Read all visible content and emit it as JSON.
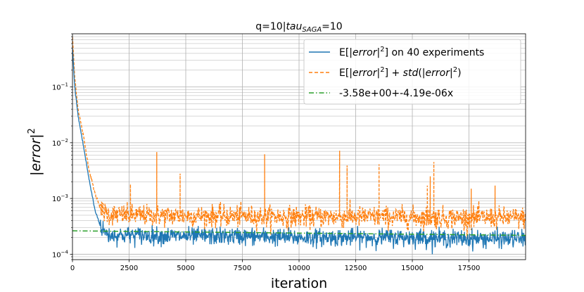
{
  "chart_data": {
    "type": "line",
    "title_parts": [
      "q=10|",
      "tau",
      "SAGA",
      "=10"
    ],
    "xlabel": "iteration",
    "ylabel_parts": [
      "|",
      "error",
      "|",
      "2"
    ],
    "yscale": "log",
    "xlim": [
      0,
      19999
    ],
    "ylim": [
      8e-05,
      0.9
    ],
    "grid": true,
    "legend_position": "top-right",
    "x_ticks": [
      0,
      2500,
      5000,
      7500,
      10000,
      12500,
      15000,
      17500
    ],
    "x_tick_labels": [
      "0",
      "2500",
      "5000",
      "7500",
      "10000",
      "12500",
      "15000",
      "17500"
    ],
    "y_ticks": [
      0.0001,
      0.001,
      0.01,
      0.1
    ],
    "y_tick_base": "10",
    "y_tick_exponents": [
      "−4",
      "−3",
      "−2",
      "−1"
    ],
    "legend": [
      {
        "parts": [
          "E[|",
          "error",
          "|",
          "2",
          "] on 40 experiments"
        ],
        "color": "#1f77b4",
        "dash": "solid"
      },
      {
        "parts": [
          "E[|",
          "error",
          "|",
          "2",
          "] + ",
          "std",
          "(|",
          "error",
          "|",
          "2",
          ")"
        ],
        "color": "#ff7f0e",
        "dash": "dashed"
      },
      {
        "parts": [
          "-3.58e+00+-4.19e-06x"
        ],
        "color": "#2ca02c",
        "dash": "dashdot"
      }
    ],
    "series": [
      {
        "key": "mean",
        "color": "#1f77b4",
        "x": [
          0,
          100,
          250,
          500,
          750,
          1000,
          1300,
          1600,
          2500,
          5000,
          7500,
          10000,
          12500,
          15000,
          17500,
          19999
        ],
        "y": [
          0.5,
          0.1,
          0.03,
          0.008,
          0.002,
          0.0006,
          0.00028,
          0.00022,
          0.00022,
          0.00021,
          0.00021,
          0.0002,
          0.0002,
          0.0002,
          0.00019,
          0.00019
        ]
      },
      {
        "key": "mean_plus_std",
        "color": "#ff7f0e",
        "x": [
          0,
          100,
          250,
          500,
          750,
          1000,
          1300,
          1600,
          2500,
          5000,
          7500,
          10000,
          12500,
          15000,
          17500,
          19999
        ],
        "y": [
          0.8,
          0.15,
          0.04,
          0.012,
          0.003,
          0.0012,
          0.0006,
          0.00052,
          0.0005,
          0.00049,
          0.00048,
          0.00047,
          0.00047,
          0.00046,
          0.00045,
          0.00045
        ],
        "spikes": [
          {
            "x": 2560,
            "y": 0.0018
          },
          {
            "x": 3720,
            "y": 0.0068
          },
          {
            "x": 4750,
            "y": 0.0028
          },
          {
            "x": 8480,
            "y": 0.0062
          },
          {
            "x": 11790,
            "y": 0.0072
          },
          {
            "x": 12120,
            "y": 0.0039
          },
          {
            "x": 13530,
            "y": 0.0041
          },
          {
            "x": 15660,
            "y": 0.0017
          },
          {
            "x": 15790,
            "y": 0.0025
          },
          {
            "x": 15950,
            "y": 0.0045
          },
          {
            "x": 17600,
            "y": 0.0015
          },
          {
            "x": 18650,
            "y": 0.0017
          }
        ]
      },
      {
        "key": "fit",
        "color": "#2ca02c",
        "x": [
          0,
          19999
        ],
        "y": [
          0.000263,
          0.000218
        ]
      }
    ]
  }
}
